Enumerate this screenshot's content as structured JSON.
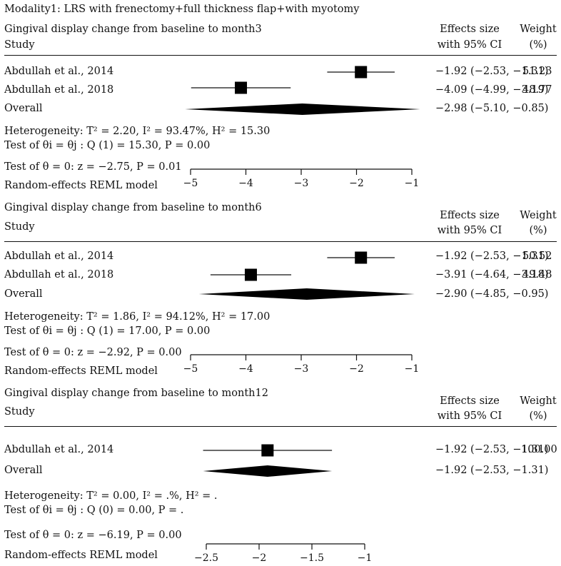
{
  "header": {
    "modality": "Modality1: LRS with frenectomy+full thickness flap+with myotomy",
    "col_effects_line1": "Effects size",
    "col_effects_line2": "with 95% CI",
    "col_weight_line1": "Weight",
    "col_weight_line2": "(%)",
    "study_label": "Study"
  },
  "panels": [
    {
      "title": "Gingival display change from baseline to month3",
      "studies": [
        {
          "name": "Abdullah et al., 2014",
          "ci_text": "−1.92 (−2.53, −1.31)",
          "weight": "51.23"
        },
        {
          "name": "Abdullah et al., 2018",
          "ci_text": "−4.09 (−4.99, −3.19)",
          "weight": "48.77"
        }
      ],
      "overall": {
        "name": "Overall",
        "ci_text": "−2.98 (−5.10, −0.85)"
      },
      "heterogeneity": "Heterogeneity: T² = 2.20, I² = 93.47%, H² = 15.30",
      "test_q": "Test of θi = θj : Q (1) = 15.30, P = 0.00",
      "test_theta": "Test of θ = 0: z = −2.75, P = 0.01",
      "model": "Random-effects REML model",
      "ticks": [
        "−5",
        "−4",
        "−3",
        "−2",
        "−1"
      ]
    },
    {
      "title": "Gingival display change from baseline to month6",
      "studies": [
        {
          "name": "Abdullah et al., 2014",
          "ci_text": "−1.92 (−2.53, −1.31)",
          "weight": "50.52"
        },
        {
          "name": "Abdullah et al., 2018",
          "ci_text": "−3.91 (−4.64, −3.18)",
          "weight": "49.48"
        }
      ],
      "overall": {
        "name": "Overall",
        "ci_text": "−2.90 (−4.85, −0.95)"
      },
      "heterogeneity": "Heterogeneity: T² = 1.86, I² = 94.12%, H² = 17.00",
      "test_q": "Test of θi = θj : Q (1) = 17.00, P = 0.00",
      "test_theta": "Test of θ = 0: z = −2.92, P = 0.00",
      "model": "Random-effects REML model",
      "ticks": [
        "−5",
        "−4",
        "−3",
        "−2",
        "−1"
      ]
    },
    {
      "title": "Gingival display change from baseline to month12",
      "studies": [
        {
          "name": "Abdullah et al., 2014",
          "ci_text": "−1.92 (−2.53, −1.31)",
          "weight": "100.00"
        }
      ],
      "overall": {
        "name": "Overall",
        "ci_text": "−1.92 (−2.53, −1.31)"
      },
      "heterogeneity": "Heterogeneity: T² = 0.00, I² = .%, H² = .",
      "test_q": "Test of θi = θj : Q (0) = 0.00, P = .",
      "test_theta": "Test of θ = 0: z = −6.19, P = 0.00",
      "model": "Random-effects REML model",
      "ticks": [
        "−2.5",
        "−2",
        "−1.5",
        "−1"
      ]
    }
  ],
  "chart_data": [
    {
      "type": "forest",
      "title": "Gingival display change from baseline to month3",
      "xlim": [
        -5,
        -1
      ],
      "xticks": [
        -5,
        -4,
        -3,
        -2,
        -1
      ],
      "series": [
        {
          "name": "Abdullah et al., 2014",
          "effect": -1.92,
          "ci": [
            -2.53,
            -1.31
          ],
          "weight": 51.23
        },
        {
          "name": "Abdullah et al., 2018",
          "effect": -4.09,
          "ci": [
            -4.99,
            -3.19
          ],
          "weight": 48.77
        }
      ],
      "overall": {
        "effect": -2.98,
        "ci": [
          -5.1,
          -0.85
        ]
      }
    },
    {
      "type": "forest",
      "title": "Gingival display change from baseline to month6",
      "xlim": [
        -5,
        -1
      ],
      "xticks": [
        -5,
        -4,
        -3,
        -2,
        -1
      ],
      "series": [
        {
          "name": "Abdullah et al., 2014",
          "effect": -1.92,
          "ci": [
            -2.53,
            -1.31
          ],
          "weight": 50.52
        },
        {
          "name": "Abdullah et al., 2018",
          "effect": -3.91,
          "ci": [
            -4.64,
            -3.18
          ],
          "weight": 49.48
        }
      ],
      "overall": {
        "effect": -2.9,
        "ci": [
          -4.85,
          -0.95
        ]
      }
    },
    {
      "type": "forest",
      "title": "Gingival display change from baseline to month12",
      "xlim": [
        -2.5,
        -1
      ],
      "xticks": [
        -2.5,
        -2,
        -1.5,
        -1
      ],
      "series": [
        {
          "name": "Abdullah et al., 2014",
          "effect": -1.92,
          "ci": [
            -2.53,
            -1.31
          ],
          "weight": 100.0
        }
      ],
      "overall": {
        "effect": -1.92,
        "ci": [
          -2.53,
          -1.31
        ]
      }
    }
  ]
}
